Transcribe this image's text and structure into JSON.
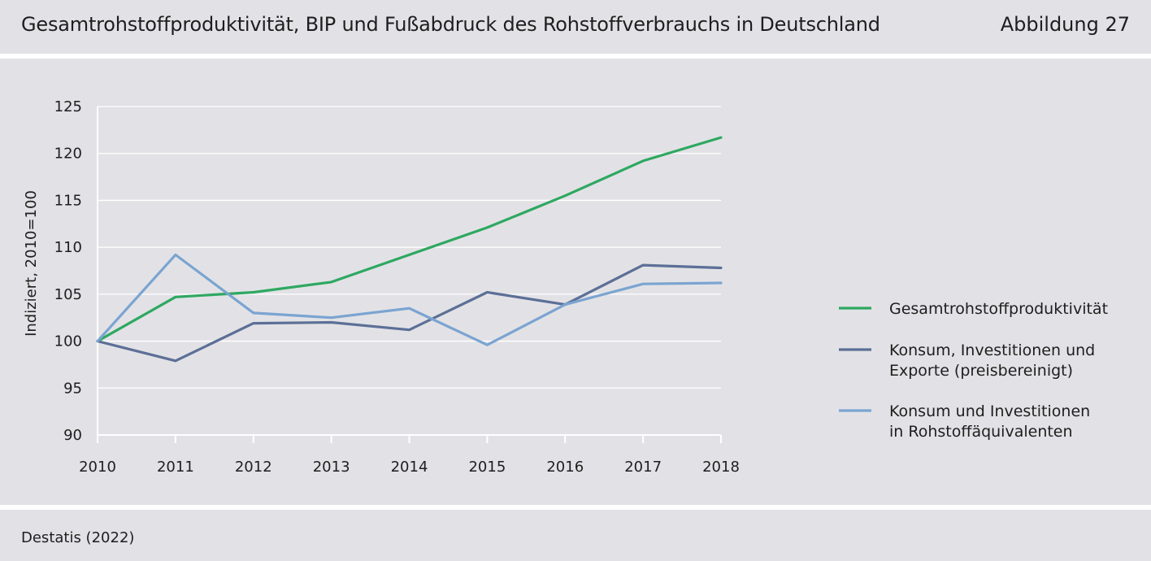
{
  "header": {
    "title": "Gesamtrohstoffproduktivität, BIP und Fußabdruck des Rohstoffverbrauchs in Deutschland",
    "figure_label": "Abbildung 27"
  },
  "footer": {
    "source": "Destatis (2022)"
  },
  "chart_data": {
    "type": "line",
    "title": "",
    "xlabel": "",
    "ylabel": "Indiziert, 2010=100",
    "x": [
      "2010",
      "2011",
      "2012",
      "2013",
      "2014",
      "2015",
      "2016",
      "2017",
      "2018"
    ],
    "ylim": [
      90,
      125
    ],
    "yticks": [
      90,
      95,
      100,
      105,
      110,
      115,
      120,
      125
    ],
    "grid": "horizontal",
    "legend_position": "right",
    "series": [
      {
        "name": "Gesamtrohstoffproduktivität",
        "color": "#2ea861",
        "values": [
          100.0,
          104.7,
          105.2,
          106.3,
          109.2,
          112.1,
          115.5,
          119.2,
          121.7
        ]
      },
      {
        "name": "Konsum, Investitionen und Exporte (preisbereinigt)",
        "legend_lines": [
          "Konsum, Investitionen und",
          "Exporte (preisbereinigt)"
        ],
        "color": "#5c6f96",
        "values": [
          100.0,
          97.9,
          101.9,
          102.0,
          101.2,
          105.2,
          103.9,
          108.1,
          107.8
        ]
      },
      {
        "name": "Konsum und Investitionen in Rohstoffäquivalenten",
        "legend_lines": [
          "Konsum und Investitionen",
          "in Rohstoffäquivalenten"
        ],
        "color": "#7ba4d1",
        "values": [
          100.0,
          109.2,
          103.0,
          102.5,
          103.5,
          99.6,
          103.9,
          106.1,
          106.2
        ]
      }
    ]
  }
}
